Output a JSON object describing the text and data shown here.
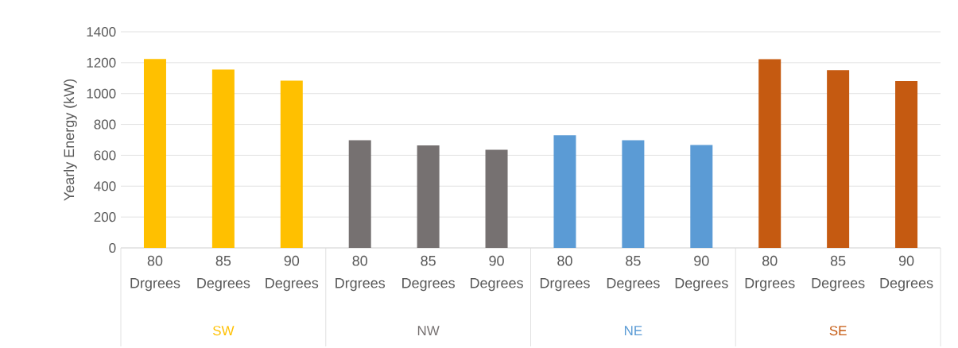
{
  "chart_data": {
    "type": "bar",
    "ylabel": "Yearly Energy (kW)",
    "categories": [
      "80 Drgrees",
      "85 Degrees",
      "90 Degrees",
      "80 Drgrees",
      "85 Degrees",
      "90 Degrees",
      "80 Drgrees",
      "85 Degrees",
      "90 Degrees",
      "80 Drgrees",
      "85 Degrees",
      "90 Degrees"
    ],
    "series": [
      {
        "name": "SW",
        "color": "#ffc000",
        "values": [
          1224,
          1156,
          1084,
          null,
          null,
          null,
          null,
          null,
          null,
          null,
          null,
          null
        ]
      },
      {
        "name": "NW",
        "color": "#767171",
        "values": [
          null,
          null,
          null,
          697,
          664,
          636,
          null,
          null,
          null,
          null,
          null,
          null
        ]
      },
      {
        "name": "NE",
        "color": "#5b9bd5",
        "values": [
          null,
          null,
          null,
          null,
          null,
          null,
          730,
          697,
          667,
          null,
          null,
          null
        ]
      },
      {
        "name": "SE",
        "color": "#c55a11",
        "values": [
          null,
          null,
          null,
          null,
          null,
          null,
          null,
          null,
          null,
          1223,
          1152,
          1081
        ]
      }
    ],
    "ylim": [
      0,
      1400
    ],
    "yticks": [
      0,
      200,
      400,
      600,
      800,
      1000,
      1200,
      1400
    ],
    "grid": "y"
  }
}
